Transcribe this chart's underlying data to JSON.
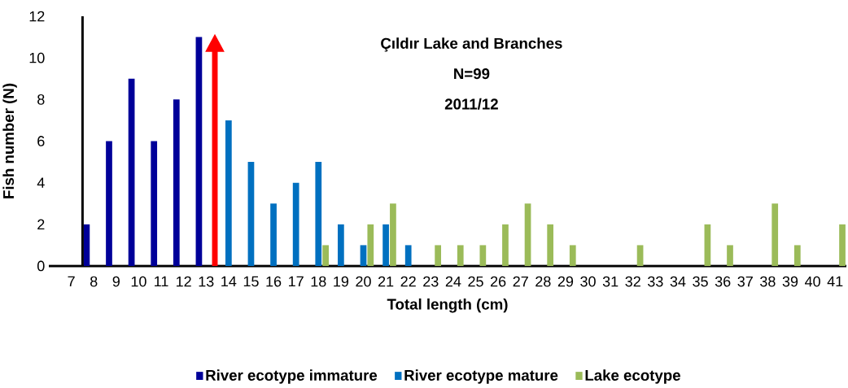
{
  "chart_data": {
    "type": "bar",
    "title": "Çıldır Lake and Branches",
    "subtitle": "N=99",
    "annotations": [
      "2011/12"
    ],
    "xlabel": "Total length (cm)",
    "ylabel": "Fish number (N)",
    "categories": [
      "7",
      "8",
      "9",
      "10",
      "11",
      "12",
      "13",
      "14",
      "15",
      "16",
      "17",
      "18",
      "19",
      "20",
      "21",
      "22",
      "23",
      "24",
      "25",
      "26",
      "27",
      "28",
      "29",
      "30",
      "31",
      "32",
      "33",
      "34",
      "35",
      "36",
      "37",
      "38",
      "39",
      "40",
      "41"
    ],
    "series": [
      {
        "name": "River ecotype immature",
        "color": "#000099",
        "values": [
          null,
          2,
          6,
          9,
          6,
          8,
          11,
          null,
          null,
          null,
          null,
          null,
          null,
          null,
          null,
          null,
          null,
          null,
          null,
          null,
          null,
          null,
          null,
          null,
          null,
          null,
          null,
          null,
          null,
          null,
          null,
          null,
          null,
          null,
          null
        ]
      },
      {
        "name": "River ecotype mature",
        "color": "#0070c0",
        "values": [
          null,
          null,
          null,
          null,
          null,
          null,
          null,
          7,
          5,
          3,
          4,
          5,
          2,
          1,
          2,
          1,
          null,
          null,
          null,
          null,
          null,
          null,
          null,
          null,
          null,
          null,
          null,
          null,
          null,
          null,
          null,
          null,
          null,
          null,
          null
        ]
      },
      {
        "name": "Lake ecotype",
        "color": "#9bbb59",
        "values": [
          null,
          null,
          null,
          null,
          null,
          null,
          null,
          null,
          null,
          null,
          null,
          1,
          null,
          2,
          3,
          null,
          1,
          1,
          1,
          2,
          3,
          2,
          1,
          null,
          null,
          1,
          null,
          null,
          2,
          1,
          null,
          3,
          1,
          null,
          2
        ]
      }
    ],
    "ylim": [
      0,
      12
    ],
    "yticks": [
      0,
      2,
      4,
      6,
      8,
      10,
      12
    ],
    "grid": false,
    "legend": "bottom"
  }
}
